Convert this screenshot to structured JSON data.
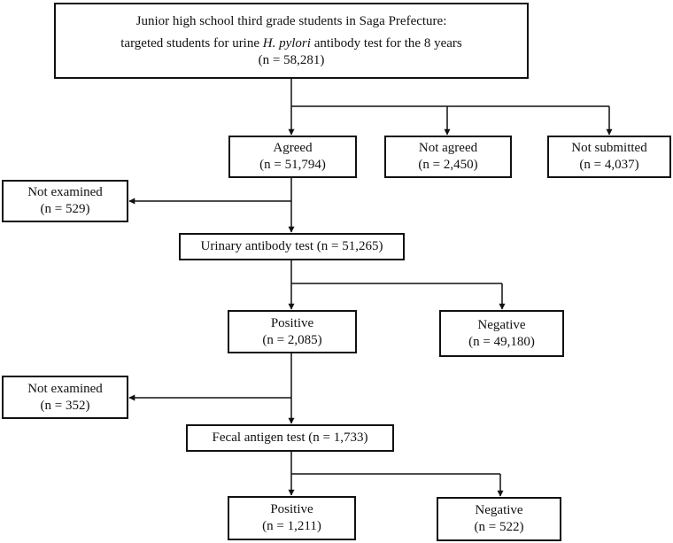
{
  "boxes": {
    "top": {
      "line1": "Junior high school third grade students in Saga Prefecture:",
      "line2_pre": "targeted students for urine ",
      "line2_italic": "H. pylori",
      "line2_post": " antibody test for the 8 years",
      "line3": "(n = 58,281)"
    },
    "agreed": {
      "label": "Agreed",
      "count": "(n = 51,794)"
    },
    "not_agreed": {
      "label": "Not agreed",
      "count": "(n = 2,450)"
    },
    "not_submitted": {
      "label": "Not submitted",
      "count": "(n = 4,037)"
    },
    "not_examined_1": {
      "label": "Not examined",
      "count": "(n = 529)"
    },
    "urinary_test": {
      "label": "Urinary antibody test (n = 51,265)"
    },
    "positive_1": {
      "label": "Positive",
      "count": "(n = 2,085)"
    },
    "negative_1": {
      "label": "Negative",
      "count": "(n = 49,180)"
    },
    "not_examined_2": {
      "label": "Not examined",
      "count": "(n = 352)"
    },
    "fecal_test": {
      "label": "Fecal antigen test (n = 1,733)"
    },
    "positive_2": {
      "label": "Positive",
      "count": "(n = 1,211)"
    },
    "negative_2": {
      "label": "Negative",
      "count": "(n = 522)"
    }
  },
  "colors": {
    "line": "#111111",
    "box_fill": "#ffffff"
  }
}
